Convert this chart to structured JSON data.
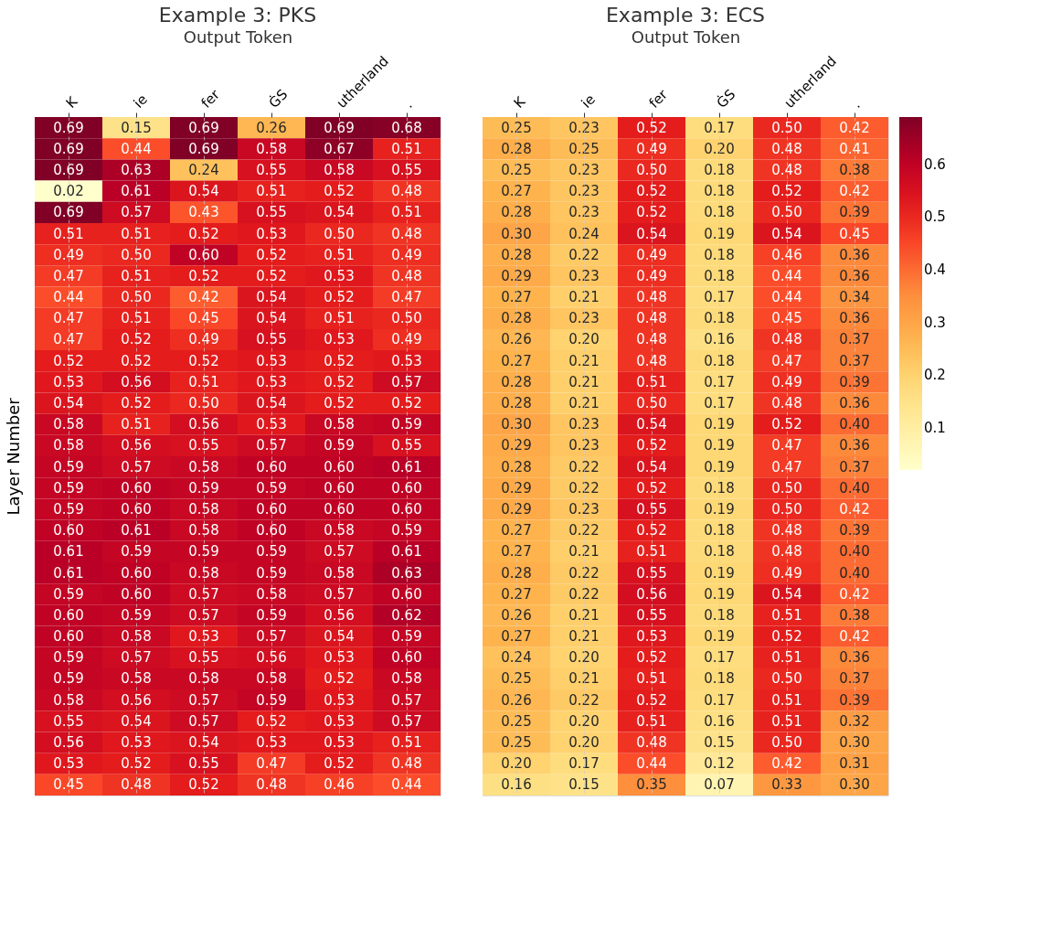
{
  "chart_data": [
    {
      "type": "heatmap",
      "title": "Example 3: PKS",
      "xlabel": "Output Token",
      "ylabel": "Layer Number",
      "grid": "x",
      "tick_labels": "x",
      "categories": [
        "K",
        "ie",
        "fer",
        "ĠS",
        "utherland",
        "."
      ],
      "y_categories": [
        null,
        null,
        null,
        null,
        null,
        null,
        null,
        null,
        null,
        null,
        null,
        null,
        null,
        null,
        null,
        null,
        null,
        null,
        null,
        null,
        null,
        null,
        null,
        null,
        null,
        null,
        null,
        null,
        null,
        null,
        null,
        null
      ],
      "cells": [
        [
          0.69,
          0.15,
          0.69,
          0.26,
          0.69,
          0.68
        ],
        [
          0.69,
          0.44,
          0.69,
          0.58,
          0.67,
          0.51
        ],
        [
          0.69,
          0.63,
          0.24,
          0.55,
          0.58,
          0.55
        ],
        [
          0.02,
          0.61,
          0.54,
          0.51,
          0.52,
          0.48
        ],
        [
          0.69,
          0.57,
          0.43,
          0.55,
          0.54,
          0.51
        ],
        [
          0.51,
          0.51,
          0.52,
          0.53,
          0.5,
          0.48
        ],
        [
          0.49,
          0.5,
          0.6,
          0.52,
          0.51,
          0.49
        ],
        [
          0.47,
          0.51,
          0.52,
          0.52,
          0.53,
          0.48
        ],
        [
          0.44,
          0.5,
          0.42,
          0.54,
          0.52,
          0.47
        ],
        [
          0.47,
          0.51,
          0.45,
          0.54,
          0.51,
          0.5
        ],
        [
          0.47,
          0.52,
          0.49,
          0.55,
          0.53,
          0.49
        ],
        [
          0.52,
          0.52,
          0.52,
          0.53,
          0.52,
          0.53
        ],
        [
          0.53,
          0.56,
          0.51,
          0.53,
          0.52,
          0.57
        ],
        [
          0.54,
          0.52,
          0.5,
          0.54,
          0.52,
          0.52
        ],
        [
          0.58,
          0.51,
          0.56,
          0.53,
          0.58,
          0.59
        ],
        [
          0.58,
          0.56,
          0.55,
          0.57,
          0.59,
          0.55
        ],
        [
          0.59,
          0.57,
          0.58,
          0.6,
          0.6,
          0.61
        ],
        [
          0.59,
          0.6,
          0.59,
          0.59,
          0.6,
          0.6
        ],
        [
          0.59,
          0.6,
          0.58,
          0.6,
          0.6,
          0.6
        ],
        [
          0.6,
          0.61,
          0.58,
          0.6,
          0.58,
          0.59
        ],
        [
          0.61,
          0.59,
          0.59,
          0.59,
          0.57,
          0.61
        ],
        [
          0.61,
          0.6,
          0.58,
          0.59,
          0.58,
          0.63
        ],
        [
          0.59,
          0.6,
          0.57,
          0.58,
          0.57,
          0.6
        ],
        [
          0.6,
          0.59,
          0.57,
          0.59,
          0.56,
          0.62
        ],
        [
          0.6,
          0.58,
          0.53,
          0.57,
          0.54,
          0.59
        ],
        [
          0.59,
          0.57,
          0.55,
          0.56,
          0.53,
          0.6
        ],
        [
          0.59,
          0.58,
          0.58,
          0.58,
          0.52,
          0.58
        ],
        [
          0.58,
          0.56,
          0.57,
          0.59,
          0.53,
          0.57
        ],
        [
          0.55,
          0.54,
          0.57,
          0.52,
          0.53,
          0.57
        ],
        [
          0.56,
          0.53,
          0.54,
          0.53,
          0.53,
          0.51
        ],
        [
          0.53,
          0.52,
          0.55,
          0.47,
          0.52,
          0.48
        ],
        [
          0.45,
          0.48,
          0.52,
          0.48,
          0.46,
          0.44
        ]
      ],
      "cell_labels": [
        [
          "0.69",
          "0.15",
          "0.69",
          "0.26",
          "0.69",
          "0.68"
        ],
        [
          "0.69",
          "0.44",
          "0.69",
          "0.58",
          "0.67",
          "0.51"
        ],
        [
          "0.69",
          "0.63",
          "0.24",
          "0.55",
          "0.58",
          "0.55"
        ],
        [
          "0.02",
          "0.61",
          "0.54",
          "0.51",
          "0.52",
          "0.48"
        ],
        [
          "0.69",
          "0.57",
          "0.43",
          "0.55",
          "0.54",
          "0.51"
        ],
        [
          "0.51",
          "0.51",
          "0.52",
          "0.53",
          "0.50",
          "0.48"
        ],
        [
          "0.49",
          "0.50",
          "0.60",
          "0.52",
          "0.51",
          "0.49"
        ],
        [
          "0.47",
          "0.51",
          "0.52",
          "0.52",
          "0.53",
          "0.48"
        ],
        [
          "0.44",
          "0.50",
          "0.42",
          "0.54",
          "0.52",
          "0.47"
        ],
        [
          "0.47",
          "0.51",
          "0.45",
          "0.54",
          "0.51",
          "0.50"
        ],
        [
          "0.47",
          "0.52",
          "0.49",
          "0.55",
          "0.53",
          "0.49"
        ],
        [
          "0.52",
          "0.52",
          "0.52",
          "0.53",
          "0.52",
          "0.53"
        ],
        [
          "0.53",
          "0.56",
          "0.51",
          "0.53",
          "0.52",
          "0.57"
        ],
        [
          "0.54",
          "0.52",
          "0.50",
          "0.54",
          "0.52",
          "0.52"
        ],
        [
          "0.58",
          "0.51",
          "0.56",
          "0.53",
          "0.58",
          "0.59"
        ],
        [
          "0.58",
          "0.56",
          "0.55",
          "0.57",
          "0.59",
          "0.55"
        ],
        [
          "0.59",
          "0.57",
          "0.58",
          "0.60",
          "0.60",
          "0.61"
        ],
        [
          "0.59",
          "0.60",
          "0.59",
          "0.59",
          "0.60",
          "0.60"
        ],
        [
          "0.59",
          "0.60",
          "0.58",
          "0.60",
          "0.60",
          "0.60"
        ],
        [
          "0.60",
          "0.61",
          "0.58",
          "0.60",
          "0.58",
          "0.59"
        ],
        [
          "0.61",
          "0.59",
          "0.59",
          "0.59",
          "0.57",
          "0.61"
        ],
        [
          "0.61",
          "0.60",
          "0.58",
          "0.59",
          "0.58",
          "0.63"
        ],
        [
          "0.59",
          "0.60",
          "0.57",
          "0.58",
          "0.57",
          "0.60"
        ],
        [
          "0.60",
          "0.59",
          "0.57",
          "0.59",
          "0.56",
          "0.62"
        ],
        [
          "0.60",
          "0.58",
          "0.53",
          "0.57",
          "0.54",
          "0.59"
        ],
        [
          "0.59",
          "0.57",
          "0.55",
          "0.56",
          "0.53",
          "0.60"
        ],
        [
          "0.59",
          "0.58",
          "0.58",
          "0.58",
          "0.52",
          "0.58"
        ],
        [
          "0.58",
          "0.56",
          "0.57",
          "0.59",
          "0.53",
          "0.57"
        ],
        [
          "0.55",
          "0.54",
          "0.57",
          "0.52",
          "0.53",
          "0.57"
        ],
        [
          "0.56",
          "0.53",
          "0.54",
          "0.53",
          "0.53",
          "0.51"
        ],
        [
          "0.53",
          "0.52",
          "0.55",
          "0.47",
          "0.52",
          "0.48"
        ],
        [
          "0.45",
          "0.48",
          "0.52",
          "0.48",
          "0.46",
          "0.44"
        ]
      ]
    },
    {
      "type": "heatmap",
      "title": "Example 3: ECS",
      "xlabel": "Output Token",
      "grid": "x",
      "tick_labels": "x",
      "categories": [
        "K",
        "ie",
        "fer",
        "ĠS",
        "utherland",
        "."
      ],
      "y_categories": [
        null,
        null,
        null,
        null,
        null,
        null,
        null,
        null,
        null,
        null,
        null,
        null,
        null,
        null,
        null,
        null,
        null,
        null,
        null,
        null,
        null,
        null,
        null,
        null,
        null,
        null,
        null,
        null,
        null,
        null,
        null,
        null
      ],
      "clim": [
        0.02,
        0.69
      ],
      "cticks": [
        0.1,
        0.2,
        0.3,
        0.4,
        0.5,
        0.6
      ],
      "cells": [
        [
          0.25,
          0.23,
          0.52,
          0.17,
          0.5,
          0.42
        ],
        [
          0.28,
          0.25,
          0.49,
          0.2,
          0.48,
          0.41
        ],
        [
          0.25,
          0.23,
          0.5,
          0.18,
          0.48,
          0.38
        ],
        [
          0.27,
          0.23,
          0.52,
          0.18,
          0.52,
          0.42
        ],
        [
          0.28,
          0.23,
          0.52,
          0.18,
          0.5,
          0.39
        ],
        [
          0.3,
          0.24,
          0.54,
          0.19,
          0.54,
          0.45
        ],
        [
          0.28,
          0.22,
          0.49,
          0.18,
          0.46,
          0.36
        ],
        [
          0.29,
          0.23,
          0.49,
          0.18,
          0.44,
          0.36
        ],
        [
          0.27,
          0.21,
          0.48,
          0.17,
          0.44,
          0.34
        ],
        [
          0.28,
          0.23,
          0.48,
          0.18,
          0.45,
          0.36
        ],
        [
          0.26,
          0.2,
          0.48,
          0.16,
          0.48,
          0.37
        ],
        [
          0.27,
          0.21,
          0.48,
          0.18,
          0.47,
          0.37
        ],
        [
          0.28,
          0.21,
          0.51,
          0.17,
          0.49,
          0.39
        ],
        [
          0.28,
          0.21,
          0.5,
          0.17,
          0.48,
          0.36
        ],
        [
          0.3,
          0.23,
          0.54,
          0.19,
          0.52,
          0.4
        ],
        [
          0.29,
          0.23,
          0.52,
          0.19,
          0.47,
          0.36
        ],
        [
          0.28,
          0.22,
          0.54,
          0.19,
          0.47,
          0.37
        ],
        [
          0.29,
          0.22,
          0.52,
          0.18,
          0.5,
          0.4
        ],
        [
          0.29,
          0.23,
          0.55,
          0.19,
          0.5,
          0.42
        ],
        [
          0.27,
          0.22,
          0.52,
          0.18,
          0.48,
          0.39
        ],
        [
          0.27,
          0.21,
          0.51,
          0.18,
          0.48,
          0.4
        ],
        [
          0.28,
          0.22,
          0.55,
          0.19,
          0.49,
          0.4
        ],
        [
          0.27,
          0.22,
          0.56,
          0.19,
          0.54,
          0.42
        ],
        [
          0.26,
          0.21,
          0.55,
          0.18,
          0.51,
          0.38
        ],
        [
          0.27,
          0.21,
          0.53,
          0.19,
          0.52,
          0.42
        ],
        [
          0.24,
          0.2,
          0.52,
          0.17,
          0.51,
          0.36
        ],
        [
          0.25,
          0.21,
          0.51,
          0.18,
          0.5,
          0.37
        ],
        [
          0.26,
          0.22,
          0.52,
          0.17,
          0.51,
          0.39
        ],
        [
          0.25,
          0.2,
          0.51,
          0.16,
          0.51,
          0.32
        ],
        [
          0.25,
          0.2,
          0.48,
          0.15,
          0.5,
          0.3
        ],
        [
          0.2,
          0.17,
          0.44,
          0.12,
          0.42,
          0.31
        ],
        [
          0.16,
          0.15,
          0.35,
          0.07,
          0.33,
          0.3
        ]
      ],
      "cell_labels": [
        [
          "0.25",
          "0.23",
          "0.52",
          "0.17",
          "0.50",
          "0.42"
        ],
        [
          "0.28",
          "0.25",
          "0.49",
          "0.20",
          "0.48",
          "0.41"
        ],
        [
          "0.25",
          "0.23",
          "0.50",
          "0.18",
          "0.48",
          "0.38"
        ],
        [
          "0.27",
          "0.23",
          "0.52",
          "0.18",
          "0.52",
          "0.42"
        ],
        [
          "0.28",
          "0.23",
          "0.52",
          "0.18",
          "0.50",
          "0.39"
        ],
        [
          "0.30",
          "0.24",
          "0.54",
          "0.19",
          "0.54",
          "0.45"
        ],
        [
          "0.28",
          "0.22",
          "0.49",
          "0.18",
          "0.46",
          "0.36"
        ],
        [
          "0.29",
          "0.23",
          "0.49",
          "0.18",
          "0.44",
          "0.36"
        ],
        [
          "0.27",
          "0.21",
          "0.48",
          "0.17",
          "0.44",
          "0.34"
        ],
        [
          "0.28",
          "0.23",
          "0.48",
          "0.18",
          "0.45",
          "0.36"
        ],
        [
          "0.26",
          "0.20",
          "0.48",
          "0.16",
          "0.48",
          "0.37"
        ],
        [
          "0.27",
          "0.21",
          "0.48",
          "0.18",
          "0.47",
          "0.37"
        ],
        [
          "0.28",
          "0.21",
          "0.51",
          "0.17",
          "0.49",
          "0.39"
        ],
        [
          "0.28",
          "0.21",
          "0.50",
          "0.17",
          "0.48",
          "0.36"
        ],
        [
          "0.30",
          "0.23",
          "0.54",
          "0.19",
          "0.52",
          "0.40"
        ],
        [
          "0.29",
          "0.23",
          "0.52",
          "0.19",
          "0.47",
          "0.36"
        ],
        [
          "0.28",
          "0.22",
          "0.54",
          "0.19",
          "0.47",
          "0.37"
        ],
        [
          "0.29",
          "0.22",
          "0.52",
          "0.18",
          "0.50",
          "0.40"
        ],
        [
          "0.29",
          "0.23",
          "0.55",
          "0.19",
          "0.50",
          "0.42"
        ],
        [
          "0.27",
          "0.22",
          "0.52",
          "0.18",
          "0.48",
          "0.39"
        ],
        [
          "0.27",
          "0.21",
          "0.51",
          "0.18",
          "0.48",
          "0.40"
        ],
        [
          "0.28",
          "0.22",
          "0.55",
          "0.19",
          "0.49",
          "0.40"
        ],
        [
          "0.27",
          "0.22",
          "0.56",
          "0.19",
          "0.54",
          "0.42"
        ],
        [
          "0.26",
          "0.21",
          "0.55",
          "0.18",
          "0.51",
          "0.38"
        ],
        [
          "0.27",
          "0.21",
          "0.53",
          "0.19",
          "0.52",
          "0.42"
        ],
        [
          "0.24",
          "0.20",
          "0.52",
          "0.17",
          "0.51",
          "0.36"
        ],
        [
          "0.25",
          "0.21",
          "0.51",
          "0.18",
          "0.50",
          "0.37"
        ],
        [
          "0.26",
          "0.22",
          "0.52",
          "0.17",
          "0.51",
          "0.39"
        ],
        [
          "0.25",
          "0.20",
          "0.51",
          "0.16",
          "0.51",
          "0.32"
        ],
        [
          "0.25",
          "0.20",
          "0.48",
          "0.15",
          "0.50",
          "0.30"
        ],
        [
          "0.20",
          "0.17",
          "0.44",
          "0.12",
          "0.42",
          "0.31"
        ],
        [
          "0.16",
          "0.15",
          "0.35",
          "0.07",
          "0.33",
          "0.30"
        ]
      ]
    }
  ]
}
